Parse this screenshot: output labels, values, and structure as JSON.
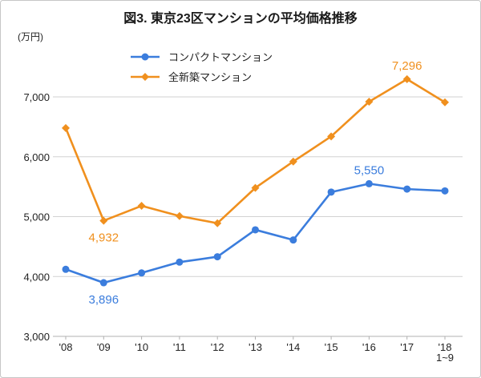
{
  "chart_data": {
    "type": "line",
    "title": "図3. 東京23区マンションの平均価格推移",
    "ylabel": "(万円)",
    "categories": [
      "'08",
      "'09",
      "'10",
      "'11",
      "'12",
      "'13",
      "'14",
      "'15",
      "'16",
      "'17",
      "'18"
    ],
    "category_note": {
      "index": 10,
      "text": "1~9"
    },
    "ylim": [
      3000,
      8000
    ],
    "yticks": [
      3000,
      4000,
      5000,
      6000,
      7000
    ],
    "ytick_labels": [
      "3,000",
      "4,000",
      "5,000",
      "6,000",
      "7,000"
    ],
    "grid": true,
    "legend_position": "top-left",
    "series": [
      {
        "name": "コンパクトマンション",
        "color": "#3b7ddd",
        "marker": "circle",
        "values": [
          4120,
          3896,
          4060,
          4240,
          4330,
          4780,
          4610,
          5410,
          5550,
          5460,
          5430
        ]
      },
      {
        "name": "全新築マンション",
        "color": "#f0901e",
        "marker": "diamond",
        "values": [
          6480,
          4932,
          5180,
          5010,
          4890,
          5480,
          5920,
          6340,
          6920,
          7296,
          6910
        ]
      }
    ],
    "annotations": [
      {
        "series": 0,
        "index": 1,
        "text": "3,896",
        "position": "below"
      },
      {
        "series": 1,
        "index": 1,
        "text": "4,932",
        "position": "below"
      },
      {
        "series": 0,
        "index": 8,
        "text": "5,550",
        "position": "above"
      },
      {
        "series": 1,
        "index": 9,
        "text": "7,296",
        "position": "above"
      }
    ]
  }
}
